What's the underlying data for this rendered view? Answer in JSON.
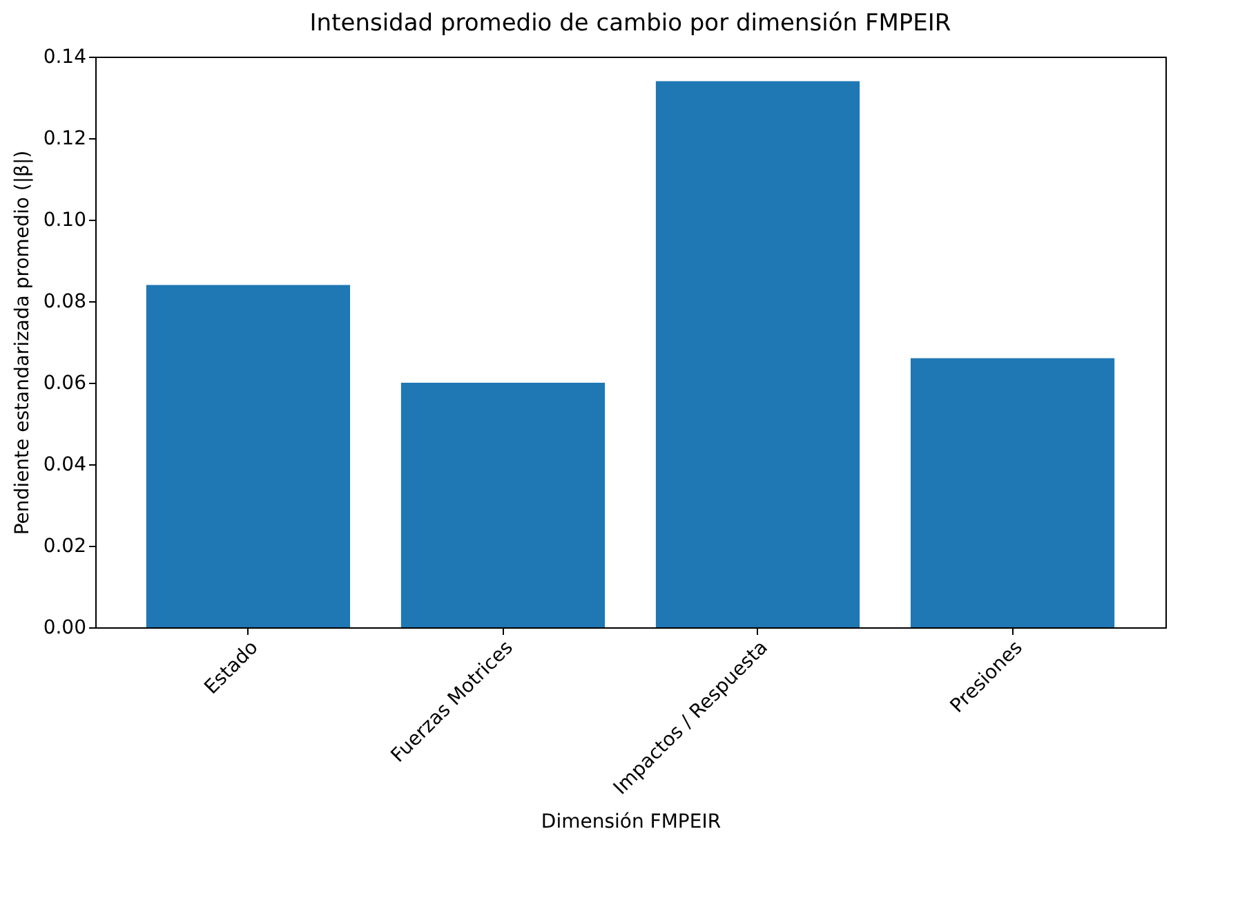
{
  "chart_data": {
    "type": "bar",
    "title": "Intensidad promedio de cambio por dimensión FMPEIR",
    "xlabel": "Dimensión FMPEIR",
    "ylabel": "Pendiente estandarizada promedio (|β|)",
    "categories": [
      "Estado",
      "Fuerzas Motrices",
      "Impactos / Respuesta",
      "Presiones"
    ],
    "values": [
      0.084,
      0.06,
      0.134,
      0.066
    ],
    "color": "#1f77b4",
    "ylim": [
      0,
      0.14
    ],
    "yticks": [
      {
        "value": 0,
        "label": "0.00"
      },
      0.02,
      0.04,
      0.06,
      0.08,
      {
        "value": 0.1,
        "label": "0.10"
      },
      0.12,
      0.14
    ],
    "grid": false
  }
}
